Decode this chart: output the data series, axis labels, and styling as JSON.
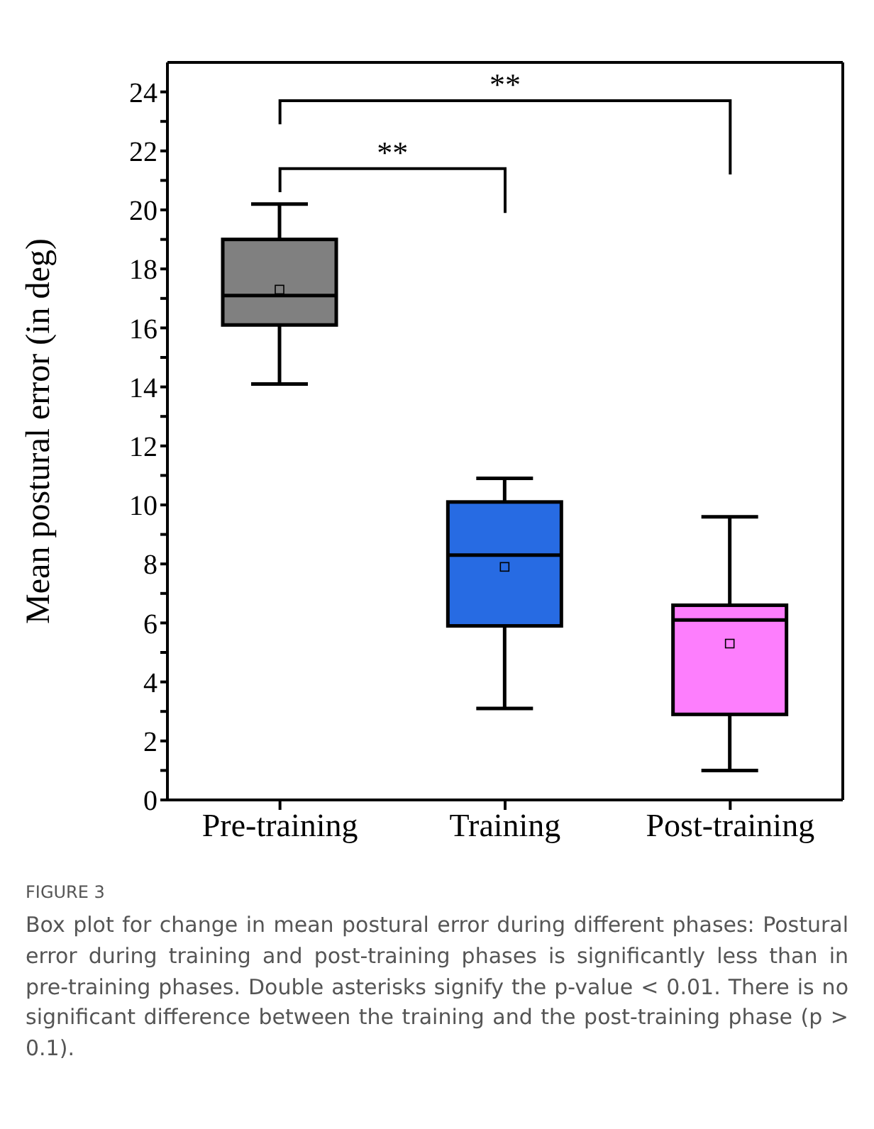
{
  "chart_data": {
    "type": "box",
    "ylabel": "Mean postural error (in deg)",
    "categories": [
      "Pre-training",
      "Training",
      "Post-training"
    ],
    "colors": [
      "#808080",
      "#276be3",
      "#fd7efd"
    ],
    "boxes": [
      {
        "low": 14.1,
        "q1": 16.1,
        "median": 17.1,
        "q3": 19.0,
        "high": 20.2,
        "mean": 17.3
      },
      {
        "low": 3.1,
        "q1": 5.9,
        "median": 8.3,
        "q3": 10.1,
        "high": 10.9,
        "mean": 7.9
      },
      {
        "low": 1.0,
        "q1": 2.9,
        "median": 6.1,
        "q3": 6.6,
        "high": 9.6,
        "mean": 5.3
      }
    ],
    "ylim": [
      0,
      25
    ],
    "yticks": [
      0,
      {
        "value": 1,
        "label": null
      },
      2,
      {
        "value": 3,
        "label": null
      },
      4,
      {
        "value": 5,
        "label": null
      },
      6,
      {
        "value": 7,
        "label": null
      },
      8,
      {
        "value": 9,
        "label": null
      },
      10,
      {
        "value": 11,
        "label": null
      },
      12,
      {
        "value": 13,
        "label": null
      },
      14,
      {
        "value": 15,
        "label": null
      },
      16,
      {
        "value": 17,
        "label": null
      },
      18,
      {
        "value": 19,
        "label": null
      },
      20,
      {
        "value": 21,
        "label": null
      },
      22,
      {
        "value": 23,
        "label": null
      },
      24
    ],
    "grid": false,
    "legend": false,
    "annotations": [
      "**",
      "**",
      "FIGURE 3",
      "Box plot for change in mean postural error during different phases: Postural error during training and post-training phases is significantly less than in pre-training phases. Double asterisks signify the p-value < 0.01. There is no significant difference between the training and the post-training phase (p > 0.1)."
    ]
  }
}
